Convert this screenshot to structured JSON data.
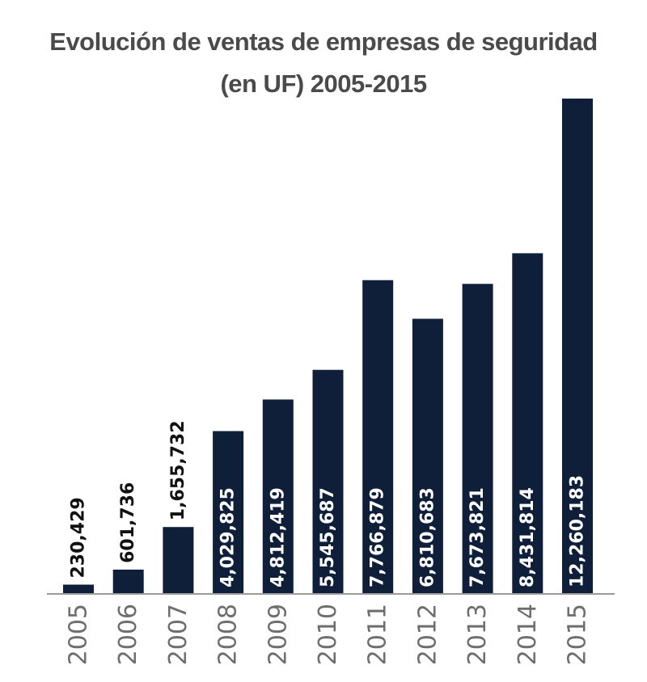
{
  "colors": {
    "bar": "#0f1f3a",
    "axis_line": "#9a9a9a",
    "title_text": "#4a4a4a",
    "label_outside": "#111111",
    "label_inside": "#ffffff",
    "tick_text": "#6e6e6e"
  },
  "chart_data": {
    "type": "bar",
    "title_lines": [
      "Evolución de ventas de empresas de seguridad",
      "(en UF) 2005-2015"
    ],
    "xlabel": "",
    "ylabel": "",
    "grid": false,
    "legend": "none",
    "ylim": [
      0,
      12260183
    ],
    "categories": [
      "2005",
      "2006",
      "2007",
      "2008",
      "2009",
      "2010",
      "2011",
      "2012",
      "2013",
      "2014",
      "2015"
    ],
    "values": [
      230429,
      601736,
      1655732,
      4029825,
      4812419,
      5545687,
      7766879,
      6810683,
      7673821,
      8431814,
      12260183
    ],
    "data_labels": [
      "230,429",
      "601,736",
      "1,655,732",
      "4,029,825",
      "4,812,419",
      "5,545,687",
      "7,766,879",
      "6,810,683",
      "7,673,821",
      "8,431,814",
      "12,260,183"
    ],
    "label_position": [
      "outside",
      "outside",
      "outside",
      "inside",
      "inside",
      "inside",
      "inside",
      "inside",
      "inside",
      "inside",
      "inside"
    ]
  }
}
